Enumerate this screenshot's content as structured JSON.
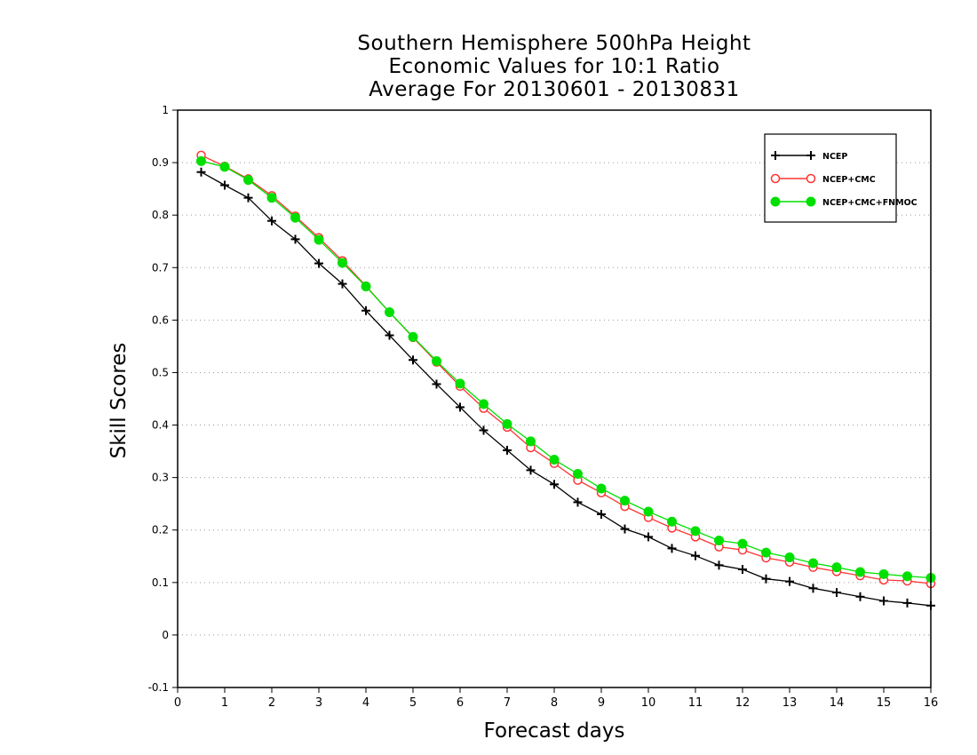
{
  "chart_data": {
    "type": "line",
    "title_lines": [
      "Southern Hemisphere 500hPa Height",
      "Economic Values for 10:1 Ratio",
      "Average For 20130601 - 20130831"
    ],
    "xlabel": "Forecast days",
    "ylabel": "Skill Scores",
    "xlim": [
      0,
      16
    ],
    "ylim": [
      -0.1,
      1
    ],
    "x_ticks": [
      0,
      1,
      2,
      3,
      4,
      5,
      6,
      7,
      8,
      9,
      10,
      11,
      12,
      13,
      14,
      15,
      16
    ],
    "x_tick_labels": [
      "0",
      "1",
      "2",
      "3",
      "4",
      "5",
      "6",
      "7",
      "8",
      "9",
      "10",
      "11",
      "12",
      "13",
      "14",
      "15",
      "16"
    ],
    "y_ticks": [
      -0.1,
      0,
      0.1,
      0.2,
      0.3,
      0.4,
      0.5,
      0.6,
      0.7,
      0.8,
      0.9,
      1
    ],
    "y_tick_labels": [
      "-0.1",
      "0",
      "0.1",
      "0.2",
      "0.3",
      "0.4",
      "0.5",
      "0.6",
      "0.7",
      "0.8",
      "0.9",
      "1"
    ],
    "grid": "horizontal dotted",
    "legend_position": "top-right",
    "x": [
      0.5,
      1,
      1.5,
      2,
      2.5,
      3,
      3.5,
      4,
      4.5,
      5,
      5.5,
      6,
      6.5,
      7,
      7.5,
      8,
      8.5,
      9,
      9.5,
      10,
      10.5,
      11,
      11.5,
      12,
      12.5,
      13,
      13.5,
      14,
      14.5,
      15,
      15.5,
      16
    ],
    "series": [
      {
        "name": "NCEP",
        "color": "#000000",
        "marker": "plus",
        "values": [
          0.882,
          0.857,
          0.833,
          0.789,
          0.754,
          0.708,
          0.669,
          0.618,
          0.571,
          0.524,
          0.478,
          0.434,
          0.39,
          0.352,
          0.314,
          0.287,
          0.253,
          0.23,
          0.202,
          0.187,
          0.165,
          0.151,
          0.133,
          0.125,
          0.107,
          0.102,
          0.089,
          0.081,
          0.073,
          0.065,
          0.061,
          0.056
        ]
      },
      {
        "name": "NCEP+CMC",
        "color": "#ff3333",
        "marker": "open-circle",
        "values": [
          0.914,
          0.893,
          0.869,
          0.837,
          0.798,
          0.757,
          0.713,
          0.665,
          0.615,
          0.567,
          0.52,
          0.474,
          0.432,
          0.396,
          0.357,
          0.327,
          0.295,
          0.271,
          0.245,
          0.224,
          0.204,
          0.187,
          0.168,
          0.162,
          0.147,
          0.139,
          0.129,
          0.121,
          0.113,
          0.105,
          0.103,
          0.098
        ]
      },
      {
        "name": "NCEP+CMC+FNMOC",
        "color": "#00e000",
        "marker": "filled-circle",
        "values": [
          0.903,
          0.892,
          0.867,
          0.833,
          0.795,
          0.753,
          0.709,
          0.664,
          0.615,
          0.568,
          0.522,
          0.479,
          0.44,
          0.402,
          0.369,
          0.334,
          0.307,
          0.279,
          0.256,
          0.235,
          0.216,
          0.198,
          0.18,
          0.174,
          0.157,
          0.148,
          0.137,
          0.129,
          0.12,
          0.116,
          0.112,
          0.109
        ]
      }
    ]
  }
}
